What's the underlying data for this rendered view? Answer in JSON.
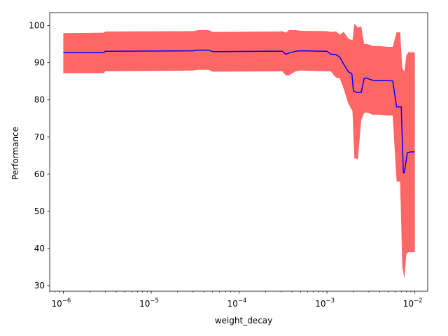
{
  "chart_data": {
    "type": "line",
    "xlabel": "weight_decay",
    "ylabel": "Performance",
    "x_scale": "log",
    "xlim": [
      7e-07,
      0.014
    ],
    "ylim": [
      28.5,
      103.5
    ],
    "yticks": [
      30,
      40,
      50,
      60,
      70,
      80,
      90,
      100
    ],
    "xticks": [
      {
        "value": 1e-06,
        "base": "10",
        "exp": "−6"
      },
      {
        "value": 1e-05,
        "base": "10",
        "exp": "−5"
      },
      {
        "value": 0.0001,
        "base": "10",
        "exp": "−4"
      },
      {
        "value": 0.001,
        "base": "10",
        "exp": "−3"
      },
      {
        "value": 0.01,
        "base": "10",
        "exp": "−2"
      }
    ],
    "grid": false,
    "legend": "none",
    "colors": {
      "mean_line": "#0000ff",
      "band": "#ff6666"
    },
    "series": [
      {
        "kind": "band",
        "x": [
          1e-06,
          2.9e-06,
          3e-06,
          3e-05,
          3.4e-05,
          4.5e-05,
          5e-05,
          0.00029,
          0.00031,
          0.00034,
          0.00037,
          0.00044,
          0.0005,
          0.001,
          0.0011,
          0.00127,
          0.0014,
          0.00155,
          0.00175,
          0.00195,
          0.00205,
          0.00225,
          0.00245,
          0.00265,
          0.00285,
          0.0033,
          0.004,
          0.0048,
          0.0056,
          0.0062,
          0.0068,
          0.0072,
          0.0076,
          0.008,
          0.0085,
          0.009,
          0.01
        ],
        "upper": [
          98.0,
          98.1,
          98.4,
          98.5,
          98.8,
          98.8,
          98.3,
          98.4,
          98.5,
          98.1,
          98.8,
          98.8,
          98.6,
          98.5,
          98.3,
          98.4,
          97.6,
          98.3,
          96.5,
          96.0,
          100.5,
          99.5,
          99.8,
          95.0,
          95.1,
          94.5,
          94.5,
          94.3,
          94.3,
          98.2,
          98.2,
          88.5,
          87.6,
          92.0,
          92.9,
          92.8,
          92.8
        ],
        "lower": [
          87.2,
          87.2,
          87.7,
          87.9,
          88.1,
          88.1,
          87.6,
          87.7,
          87.7,
          86.6,
          86.6,
          87.7,
          87.9,
          87.7,
          87.7,
          86.0,
          85.8,
          83.0,
          79.0,
          77.0,
          64.3,
          64.0,
          74.5,
          76.5,
          76.6,
          76.0,
          76.0,
          75.8,
          75.8,
          58.0,
          58.0,
          35.0,
          32.0,
          38.5,
          39.0,
          39.0,
          39.0
        ]
      },
      {
        "kind": "line",
        "x": [
          1e-06,
          2.9e-06,
          3e-06,
          3e-05,
          3.4e-05,
          4.5e-05,
          5e-05,
          0.00029,
          0.00031,
          0.00034,
          0.00038,
          0.00044,
          0.0005,
          0.001,
          0.0011,
          0.00127,
          0.0014,
          0.00155,
          0.00175,
          0.00192,
          0.002,
          0.0022,
          0.00245,
          0.00265,
          0.00285,
          0.0033,
          0.004,
          0.0048,
          0.0056,
          0.0062,
          0.0066,
          0.007,
          0.0074,
          0.0076,
          0.0082,
          0.009,
          0.01
        ],
        "y": [
          92.7,
          92.7,
          93.1,
          93.2,
          93.4,
          93.4,
          93.0,
          93.1,
          93.1,
          92.3,
          92.7,
          93.1,
          93.2,
          93.1,
          92.3,
          92.2,
          91.5,
          89.6,
          87.6,
          87.0,
          82.4,
          82.0,
          82.0,
          85.8,
          85.8,
          85.3,
          85.2,
          85.2,
          85.1,
          78.1,
          78.1,
          78.1,
          60.4,
          60.4,
          65.8,
          66.0,
          66.0
        ]
      }
    ]
  }
}
